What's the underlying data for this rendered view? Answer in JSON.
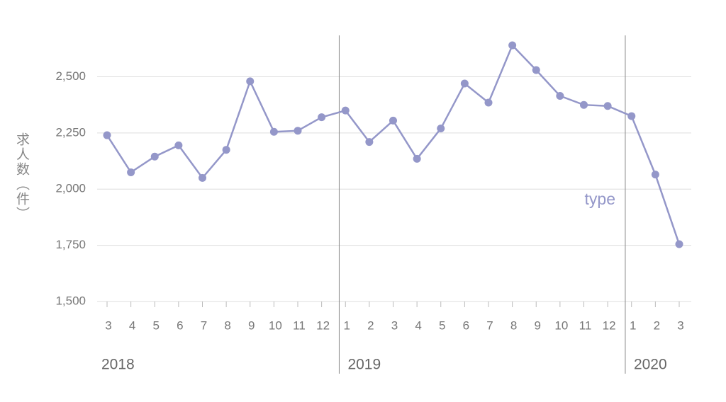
{
  "chart_data": {
    "type": "line",
    "y_label": "求人数（件）",
    "categories": [
      "3",
      "4",
      "5",
      "6",
      "7",
      "8",
      "9",
      "10",
      "11",
      "12",
      "1",
      "2",
      "3",
      "4",
      "5",
      "6",
      "7",
      "8",
      "9",
      "10",
      "11",
      "12",
      "1",
      "2",
      "3"
    ],
    "year_labels": [
      "2018",
      "2019",
      "2020"
    ],
    "series": [
      {
        "name": "type",
        "color": "#9497c9",
        "values": [
          2240,
          2075,
          2145,
          2195,
          2050,
          2175,
          2480,
          2255,
          2260,
          2320,
          2350,
          2210,
          2305,
          2135,
          2270,
          2470,
          2385,
          2640,
          2530,
          2415,
          2375,
          2370,
          2325,
          2065,
          1755
        ]
      }
    ],
    "ylim": [
      1500,
      2700
    ],
    "yticks": [
      {
        "value": 1500,
        "label": "1,500"
      },
      {
        "value": 1750,
        "label": "1,750"
      },
      {
        "value": 2000,
        "label": "2,000"
      },
      {
        "value": 2250,
        "label": "2,250"
      },
      {
        "value": 2500,
        "label": "2,500"
      }
    ],
    "grid": true
  }
}
